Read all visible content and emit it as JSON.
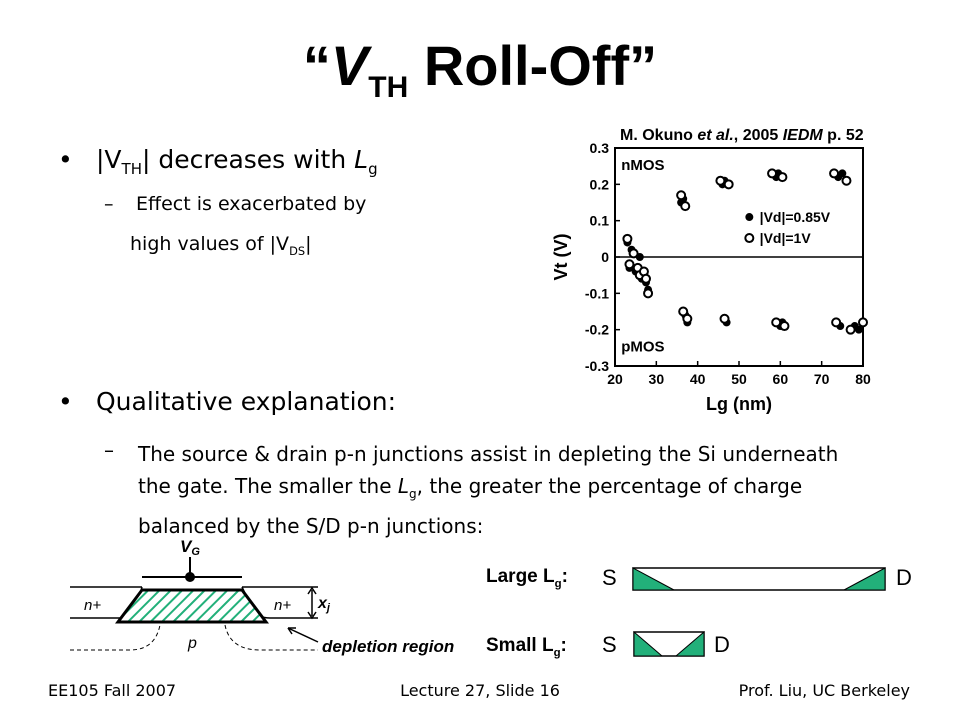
{
  "title": {
    "open_quote": "“",
    "v": "V",
    "sub": "TH",
    "rest": " Roll-Off",
    "close_quote": "”"
  },
  "bullets": {
    "b1": {
      "bar1": "|V",
      "sub": "TH",
      "mid": "| decreases with ",
      "l": "L",
      "lsub": "g"
    },
    "b1_sub": {
      "line1": "Effect is exacerbated by",
      "line2_pre": "high values of |V",
      "line2_sub": "DS",
      "line2_post": "|"
    },
    "b2": {
      "text": "Qualitative explanation:"
    },
    "b2_sub": {
      "line1": "The source & drain p-n junctions assist in depleting the Si underneath",
      "line2_pre": "the gate.  The smaller the ",
      "line2_l": "L",
      "line2_lsub": "g",
      "line2_post": ", the greater the percentage of charge",
      "line3": "balanced by the S/D p-n junctions:"
    }
  },
  "citation": {
    "pre": "M. Okuno ",
    "etal": "et al.",
    "mid": ", 2005 ",
    "journal": "IEDM",
    "post": " p. 52"
  },
  "chart_data": {
    "type": "scatter",
    "xlabel": "Lg (nm)",
    "ylabel": "Vt (V)",
    "xlim": [
      20,
      80
    ],
    "ylim": [
      -0.3,
      0.3
    ],
    "x_ticks": [
      "20",
      "30",
      "40",
      "50",
      "60",
      "70",
      "80"
    ],
    "y_ticks": [
      "0.3",
      "0.2",
      "0.1",
      "0",
      "-0.1",
      "-0.2",
      "-0.3"
    ],
    "annotations": [
      "nMOS",
      "pMOS"
    ],
    "series": [
      {
        "name": "|Vd|=0.85V",
        "marker": "filled",
        "points": [
          [
            23,
            0.04
          ],
          [
            23.5,
            -0.03
          ],
          [
            24,
            0.02
          ],
          [
            25,
            -0.04
          ],
          [
            26,
            0.0
          ],
          [
            26.5,
            -0.06
          ],
          [
            27,
            -0.05
          ],
          [
            27.5,
            -0.07
          ],
          [
            28,
            -0.09
          ],
          [
            36,
            0.15
          ],
          [
            36.5,
            0.16
          ],
          [
            37,
            -0.16
          ],
          [
            37.5,
            -0.18
          ],
          [
            46,
            0.2
          ],
          [
            46.5,
            0.21
          ],
          [
            47,
            -0.18
          ],
          [
            59,
            0.22
          ],
          [
            59.5,
            0.23
          ],
          [
            60,
            -0.19
          ],
          [
            60.5,
            -0.18
          ],
          [
            74,
            0.22
          ],
          [
            75,
            0.23
          ],
          [
            74.5,
            -0.19
          ],
          [
            78,
            -0.19
          ],
          [
            79,
            -0.2
          ]
        ]
      },
      {
        "name": "|Vd|=1V",
        "marker": "open",
        "points": [
          [
            23,
            0.05
          ],
          [
            23.5,
            -0.02
          ],
          [
            24.5,
            0.01
          ],
          [
            25.5,
            -0.03
          ],
          [
            26,
            -0.05
          ],
          [
            27,
            -0.04
          ],
          [
            27.5,
            -0.06
          ],
          [
            28,
            -0.1
          ],
          [
            36,
            0.17
          ],
          [
            37,
            0.14
          ],
          [
            36.5,
            -0.15
          ],
          [
            37.5,
            -0.17
          ],
          [
            45.5,
            0.21
          ],
          [
            47.5,
            0.2
          ],
          [
            46.5,
            -0.17
          ],
          [
            58,
            0.23
          ],
          [
            60.5,
            0.22
          ],
          [
            59,
            -0.18
          ],
          [
            61,
            -0.19
          ],
          [
            73,
            0.23
          ],
          [
            76,
            0.21
          ],
          [
            73.5,
            -0.18
          ],
          [
            77,
            -0.2
          ],
          [
            80,
            -0.18
          ]
        ]
      }
    ]
  },
  "diagram": {
    "vg_label": "V",
    "vg_sub": "G",
    "n_left": "n+",
    "n_right": "n+",
    "p_label": "p",
    "xj_label": "x",
    "xj_sub": "j",
    "depletion_label": "depletion region",
    "large_label": "Large L",
    "small_label": "Small L",
    "lg_sub": "g",
    "colon": ":",
    "S": "S",
    "D": "D",
    "accent": "#22b07a"
  },
  "footer": {
    "left": "EE105 Fall 2007",
    "center": "Lecture 27, Slide 16",
    "right": "Prof. Liu, UC Berkeley"
  }
}
